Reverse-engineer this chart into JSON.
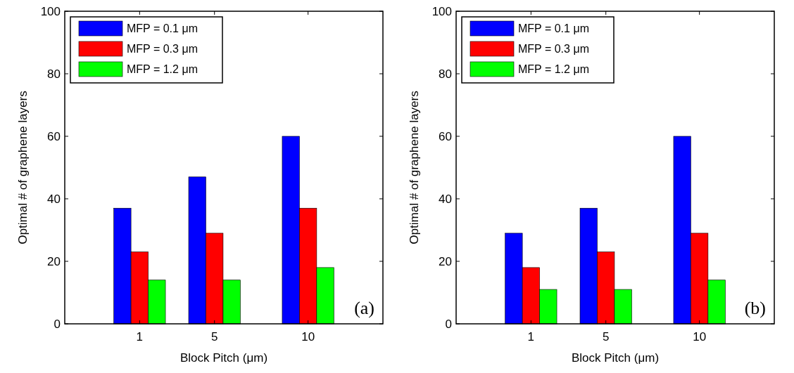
{
  "chart_data": [
    {
      "type": "bar",
      "x": [
        1,
        5,
        10
      ],
      "xlim": [
        -3,
        14
      ],
      "xticks": [
        1,
        5,
        10
      ],
      "ylim": [
        0,
        100
      ],
      "yticks": [
        0,
        20,
        40,
        60,
        80,
        100
      ],
      "xlabel": "Block Pitch (μm)",
      "ylabel": "Optimal # of graphene layers",
      "legend": "top left",
      "grid": false,
      "annotations": [
        "(a)"
      ],
      "series": [
        {
          "name": "MFP = 0.1 μm",
          "color": "#0000ff",
          "values": [
            37,
            47,
            60
          ]
        },
        {
          "name": "MFP = 0.3 μm",
          "color": "#ff0000",
          "values": [
            23,
            29,
            37
          ]
        },
        {
          "name": "MFP = 1.2 μm",
          "color": "#00ff00",
          "values": [
            14,
            14,
            18
          ]
        }
      ]
    },
    {
      "type": "bar",
      "x": [
        1,
        5,
        10
      ],
      "xlim": [
        -3,
        14
      ],
      "xticks": [
        1,
        5,
        10
      ],
      "ylim": [
        0,
        100
      ],
      "yticks": [
        0,
        20,
        40,
        60,
        80,
        100
      ],
      "xlabel": "Block Pitch (μm)",
      "ylabel": "Optimal # of graphene layers",
      "legend": "top left",
      "grid": false,
      "annotations": [
        "(b)"
      ],
      "series": [
        {
          "name": "MFP = 0.1 μm",
          "color": "#0000ff",
          "values": [
            29,
            37,
            60
          ]
        },
        {
          "name": "MFP = 0.3 μm",
          "color": "#ff0000",
          "values": [
            18,
            23,
            29
          ]
        },
        {
          "name": "MFP = 1.2 μm",
          "color": "#00ff00",
          "values": [
            11,
            11,
            14
          ]
        }
      ]
    }
  ]
}
